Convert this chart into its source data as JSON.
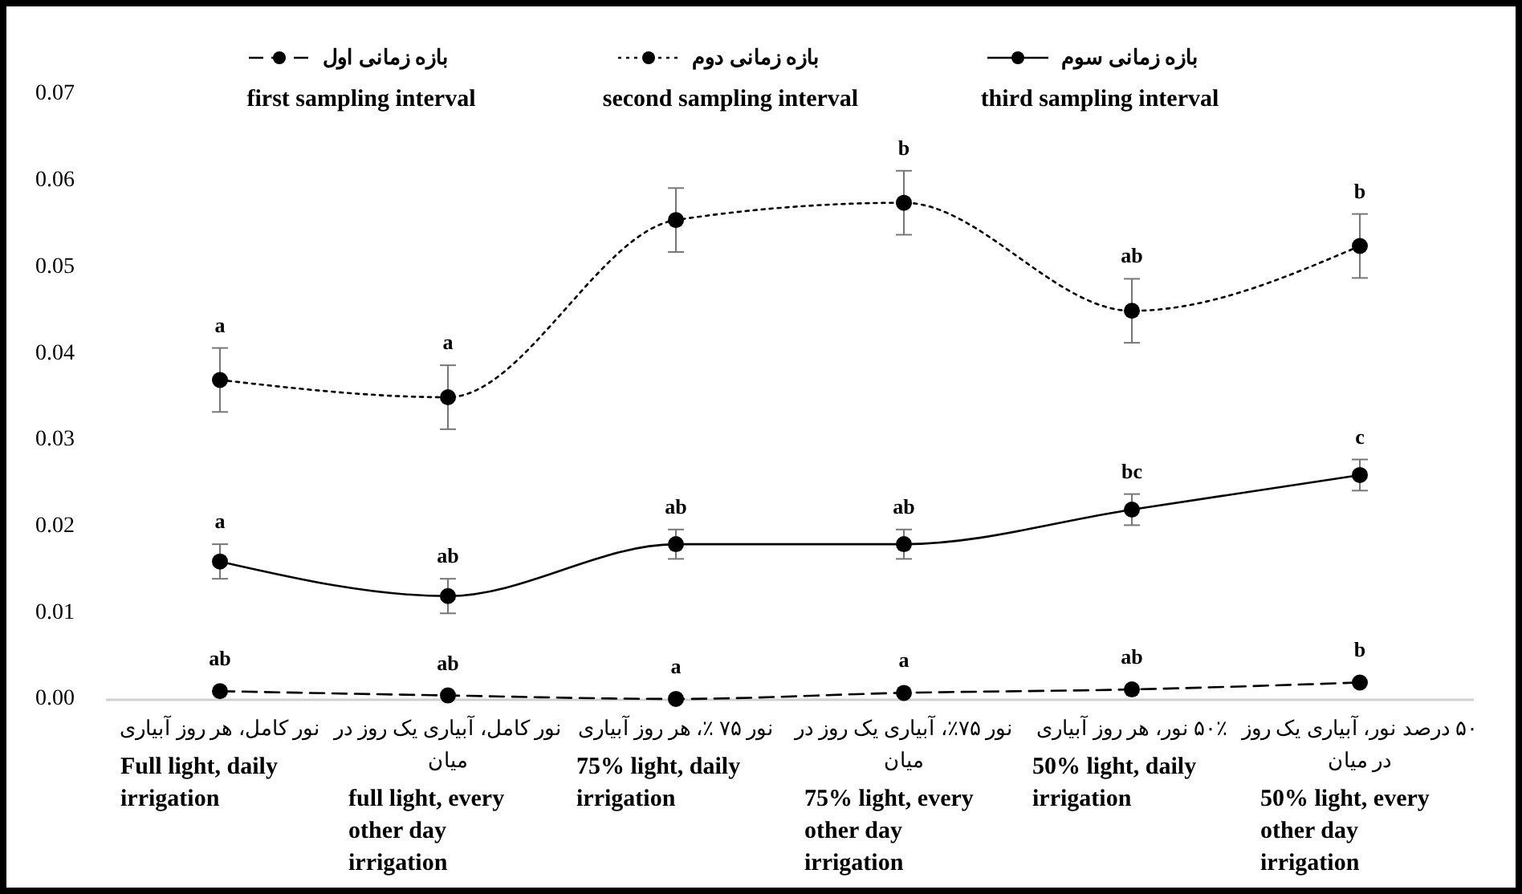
{
  "chart_data": {
    "type": "line",
    "categories": [
      "نور کامل، هر روز آبیاری\nFull light, daily irrigation",
      "نور کامل، آبیاری یک روز در میان\nfull light, every other day irrigation",
      "نور ۷۵ ٪، هر روز آبیاری\n75% light, daily irrigation",
      "نور ۷۵٪، آبیاری یک روز در میان\n75% light, every other day irrigation",
      "۵۰٪ نور، هر روز آبیاری\n50% light, daily irrigation",
      "۵۰ درصد نور، آبیاری یک روز در میان\n50% light, every other day irrigation"
    ],
    "series": [
      {
        "name": "بازه زمانی اول\nfirst sampling interval",
        "color": "#000000",
        "line_style": "dashed",
        "values": [
          0.001,
          0.0005,
          0.0001,
          0.0008,
          0.0012,
          0.002
        ]
      },
      {
        "name": "بازه زمانی دوم\nsecond sampling interval",
        "color": "#000000",
        "line_style": "dotted",
        "values": [
          0.037,
          0.035,
          0.0555,
          0.0575,
          0.045,
          0.0525
        ],
        "errors": [
          0.0037,
          0.0037,
          0.0037,
          0.0037,
          0.0037,
          0.0037
        ]
      },
      {
        "name": "بازه زمانی سوم\nthird sampling interval",
        "color": "#000000",
        "line_style": "solid",
        "values": [
          0.016,
          0.012,
          0.018,
          0.018,
          0.022,
          0.026
        ],
        "errors": [
          0.002,
          0.002,
          0.0017,
          0.0017,
          0.0018,
          0.0018
        ]
      }
    ],
    "ylim": [
      0,
      0.07
    ],
    "yticks": [
      {
        "value": 0,
        "label": "0.00"
      },
      {
        "value": 0.01,
        "label": "0.01"
      },
      {
        "value": 0.02,
        "label": "0.02"
      },
      {
        "value": 0.03,
        "label": "0.03"
      },
      {
        "value": 0.04,
        "label": "0.04"
      },
      {
        "value": 0.05,
        "label": "0.05"
      },
      {
        "value": 0.06,
        "label": "0.06"
      },
      {
        "value": 0.07,
        "label": "0.07"
      }
    ],
    "marker": "circle",
    "legend": "top",
    "grid": false,
    "annotations": [
      {
        "text": "ab",
        "x": "نور کامل، هر روز آبیاری\nFull light, daily irrigation",
        "y": 0.001
      },
      {
        "text": "ab",
        "x": "نور کامل، آبیاری یک روز در میان\nfull light, every other day irrigation",
        "y": 0.0005
      },
      {
        "text": "a",
        "x": "نور ۷۵ ٪، هر روز آبیاری\n75% light, daily irrigation",
        "y": 0.0001
      },
      {
        "text": "a",
        "x": "نور ۷۵٪، آبیاری یک روز در میان\n75% light, every other day irrigation",
        "y": 0.0008
      },
      {
        "text": "ab",
        "x": "۵۰٪ نور، هر روز آبیاری\n50% light, daily irrigation",
        "y": 0.0012
      },
      {
        "text": "b",
        "x": "۵۰ درصد نور، آبیاری یک روز در میان\n50% light, every other day irrigation",
        "y": 0.002
      },
      {
        "text": "a",
        "x": "نور کامل، هر روز آبیاری\nFull light, daily irrigation",
        "y": 0.037
      },
      {
        "text": "a",
        "x": "نور کامل، آبیاری یک روز در میان\nfull light, every other day irrigation",
        "y": 0.035
      },
      {
        "text": "b",
        "x": "نور ۷۵٪، آبیاری یک روز در میان\n75% light, every other day irrigation",
        "y": 0.0575
      },
      {
        "text": "ab",
        "x": "۵۰٪ نور، هر روز آبیاری\n50% light, daily irrigation",
        "y": 0.045
      },
      {
        "text": "b",
        "x": "۵۰ درصد نور، آبیاری یک روز در میان\n50% light, every other day irrigation",
        "y": 0.0525
      },
      {
        "text": "a",
        "x": "نور کامل، هر روز آبیاری\nFull light, daily irrigation",
        "y": 0.016
      },
      {
        "text": "ab",
        "x": "نور کامل، آبیاری یک روز در میان\nfull light, every other day irrigation",
        "y": 0.012
      },
      {
        "text": "ab",
        "x": "نور ۷۵ ٪، هر روز آبیاری\n75% light, daily irrigation",
        "y": 0.018
      },
      {
        "text": "ab",
        "x": "نور ۷۵٪، آبیاری یک روز در میان\n75% light, every other day irrigation",
        "y": 0.018
      },
      {
        "text": "bc",
        "x": "۵۰٪ نور، هر روز آبیاری\n50% light, daily irrigation",
        "y": 0.022
      },
      {
        "text": "c",
        "x": "۵۰ درصد نور، آبیاری یک روز در میان\n50% light, every other day irrigation",
        "y": 0.026
      }
    ]
  }
}
